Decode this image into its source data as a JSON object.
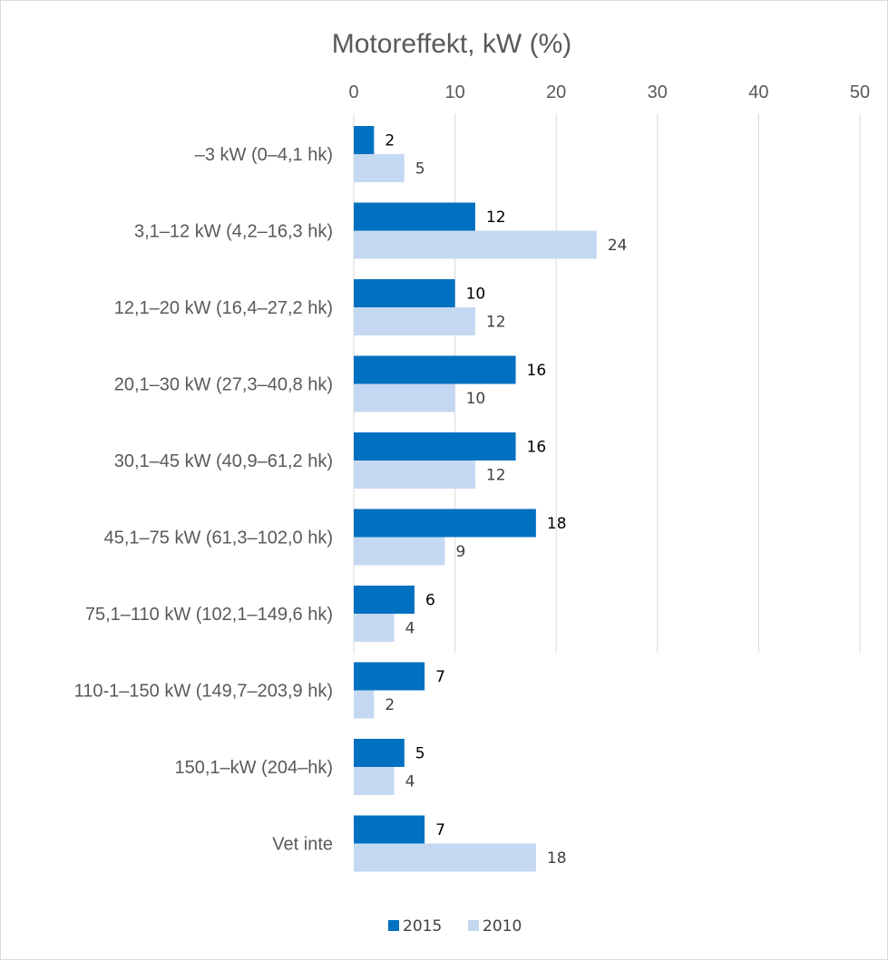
{
  "chart_data": {
    "type": "bar",
    "orientation": "horizontal",
    "title": "Motoreffekt, kW (%)",
    "categories": [
      "–3 kW (0–4,1 hk)",
      "3,1–12 kW (4,2–16,3 hk)",
      "12,1–20 kW (16,4–27,2 hk)",
      "20,1–30 kW (27,3–40,8 hk)",
      "30,1–45 kW (40,9–61,2 hk)",
      "45,1–75 kW (61,3–102,0 hk)",
      "75,1–110 kW (102,1–149,6 hk)",
      "110-1–150 kW (149,7–203,9 hk)",
      "150,1–kW (204–hk)",
      "Vet inte"
    ],
    "series": [
      {
        "name": "2015",
        "color": "#0070c0",
        "values": [
          2,
          12,
          10,
          16,
          16,
          18,
          6,
          7,
          5,
          7
        ]
      },
      {
        "name": "2010",
        "color": "#c5d8f1",
        "values": [
          5,
          24,
          12,
          10,
          12,
          9,
          4,
          2,
          4,
          18
        ]
      }
    ],
    "xlim": [
      0,
      50
    ],
    "xticks": [
      0,
      10,
      20,
      30,
      40,
      50
    ],
    "x_axis_position": "top",
    "grid": true,
    "legend_position": "bottom",
    "data_labels": true
  }
}
